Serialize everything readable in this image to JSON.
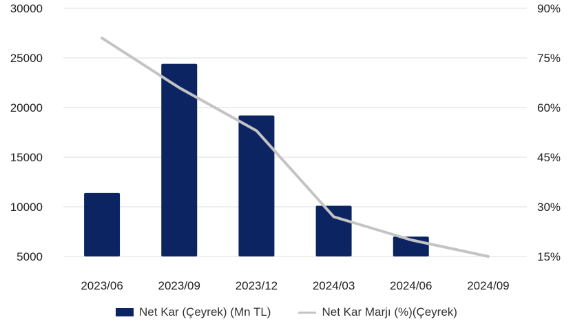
{
  "chart_data": {
    "type": "bar",
    "categories": [
      "2023/06",
      "2023/09",
      "2023/12",
      "2024/03",
      "2024/06",
      "2024/09"
    ],
    "series": [
      {
        "name": "Net Kar (Çeyrek) (Mn TL)",
        "kind": "bar",
        "axis": "left",
        "color": "#0d2463",
        "values": [
          11400,
          24400,
          19200,
          10100,
          7000,
          null
        ]
      },
      {
        "name": "Net Kar Marjı (%)(Çeyrek)",
        "kind": "line",
        "axis": "right",
        "color": "#c4c4c4",
        "values": [
          81,
          66,
          53,
          27,
          20,
          15
        ]
      }
    ],
    "y_left": {
      "ylim": [
        5000,
        30000
      ],
      "ticks": [
        "5000",
        "10000",
        "15000",
        "20000",
        "25000",
        "30000"
      ]
    },
    "y_right": {
      "ylim": [
        15,
        90
      ],
      "ticks": [
        "15%",
        "30%",
        "45%",
        "60%",
        "75%",
        "90%"
      ]
    },
    "grid": true,
    "legend_position": "bottom"
  }
}
